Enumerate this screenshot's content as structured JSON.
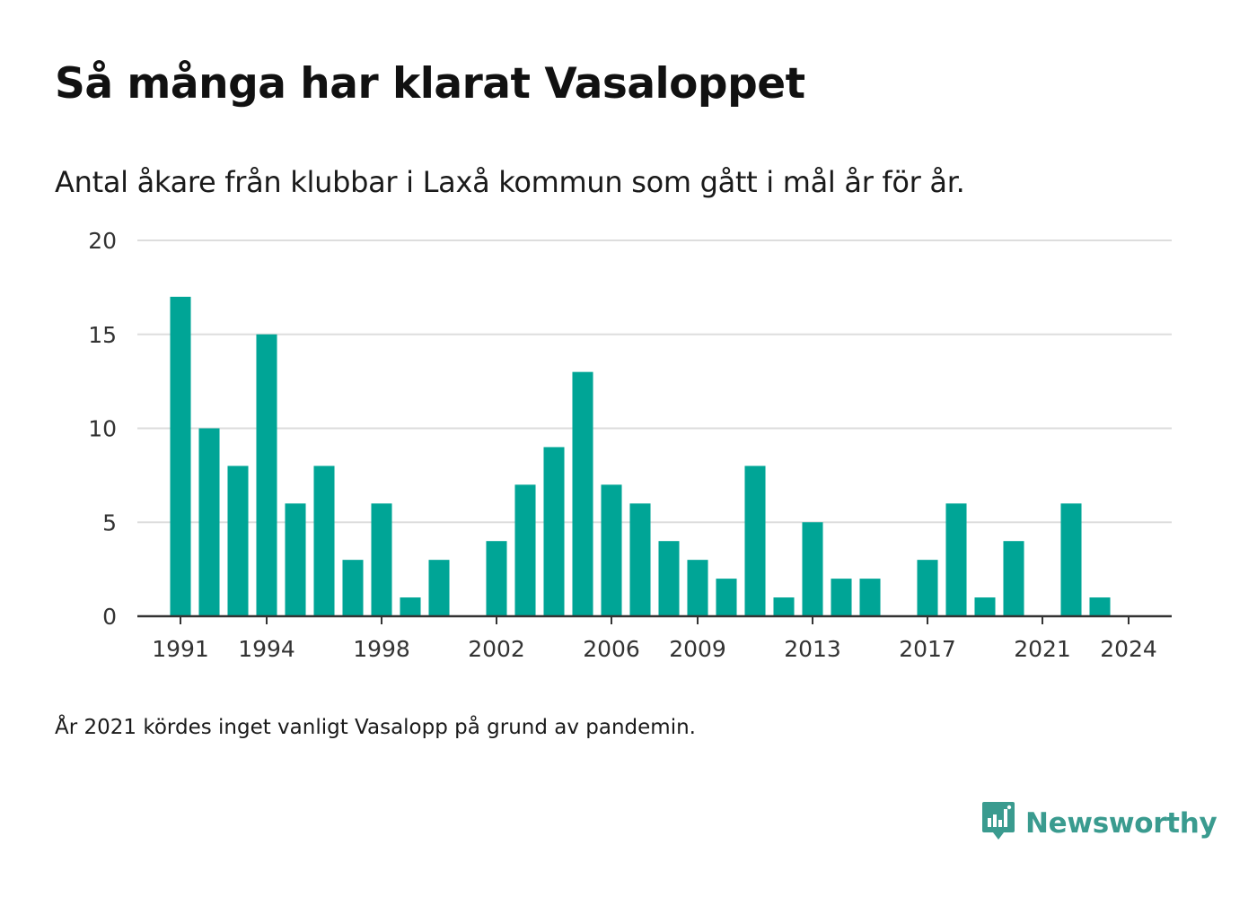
{
  "title": "Så många har klarat Vasaloppet",
  "subtitle": "Antal åkare från klubbar i Laxå kommun som gått i mål år för år.",
  "note": "År 2021 kördes inget vanligt Vasalopp på grund av pandemin.",
  "brand": {
    "name": "Newsworthy",
    "icon": "newsworthy-logo-icon",
    "color": "#3a9b8f"
  },
  "chart_data": {
    "type": "bar",
    "title": "Så många har klarat Vasaloppet",
    "subtitle": "Antal åkare från klubbar i Laxå kommun som gått i mål år för år.",
    "xlabel": "",
    "ylabel": "",
    "ylim": [
      0,
      20
    ],
    "yticks": [
      0,
      5,
      10,
      15,
      20
    ],
    "xlim": [
      1989.5,
      2025.5
    ],
    "xticks": [
      1991,
      1994,
      1998,
      2002,
      2006,
      2009,
      2013,
      2017,
      2021,
      2024
    ],
    "grid": true,
    "bar_color": "#00a596",
    "series": [
      {
        "x": [
          1991,
          1992,
          1993,
          1994,
          1995,
          1996,
          1997,
          1998,
          1999,
          2000,
          2001,
          2002,
          2003,
          2004,
          2005,
          2006,
          2007,
          2008,
          2009,
          2010,
          2011,
          2012,
          2013,
          2014,
          2015,
          2016,
          2017,
          2018,
          2019,
          2020,
          2021,
          2022,
          2023,
          2024,
          2025
        ],
        "values": [
          17,
          10,
          8,
          15,
          6,
          8,
          3,
          6,
          1,
          3,
          0,
          4,
          7,
          9,
          13,
          7,
          6,
          4,
          3,
          2,
          8,
          1,
          5,
          2,
          2,
          0,
          3,
          6,
          1,
          4,
          0,
          6,
          1,
          0,
          0
        ]
      }
    ]
  }
}
